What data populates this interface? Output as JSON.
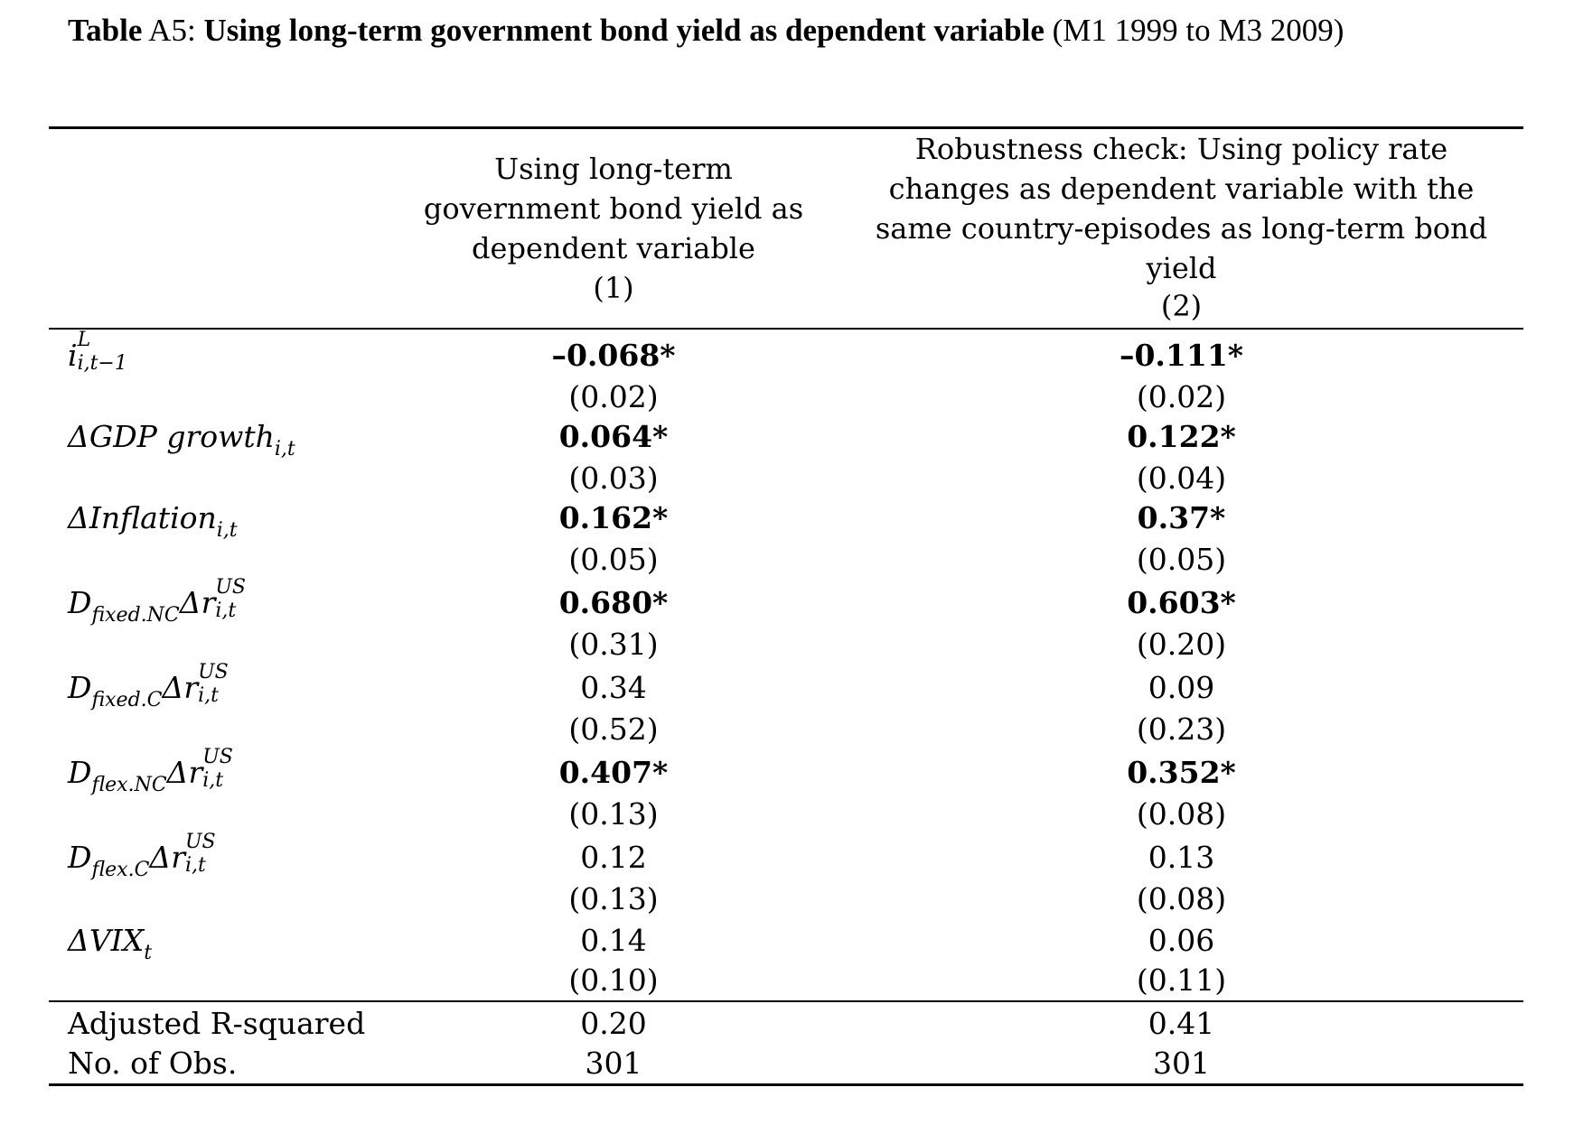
{
  "caption": {
    "label": "Table",
    "number": " A5: ",
    "title": "Using long-term government bond yield as dependent variable",
    "period": " (M1 1999 to M3 2009)"
  },
  "columns": [
    {
      "heading": "Using long-term government bond yield as dependent variable",
      "number": "(1)"
    },
    {
      "heading": "Robustness check: Using policy rate changes as dependent variable with the same country-episodes as long-term bond yield",
      "number": "(2)"
    }
  ],
  "rows": [
    {
      "label": {
        "base": "i",
        "sup": "L",
        "sub": "i,t−1"
      },
      "col1": {
        "coef": "–0.068*",
        "se": "(0.02)",
        "significant": true
      },
      "col2": {
        "coef": "–0.111*",
        "se": "(0.02)",
        "significant": true
      }
    },
    {
      "label": {
        "base": "ΔGDP growth",
        "sub": "i,t"
      },
      "col1": {
        "coef": "0.064*",
        "se": "(0.03)",
        "significant": true
      },
      "col2": {
        "coef": "0.122*",
        "se": "(0.04)",
        "significant": true
      }
    },
    {
      "label": {
        "base": "ΔInflation",
        "sub": "i,t"
      },
      "col1": {
        "coef": "0.162*",
        "se": "(0.05)",
        "significant": true
      },
      "col2": {
        "coef": "0.37*",
        "se": "(0.05)",
        "significant": true
      }
    },
    {
      "label": {
        "base": "D",
        "sub": "fixed.NC",
        "mid": "Δr",
        "sup2": "US",
        "sub2": "i,t"
      },
      "col1": {
        "coef": "0.680*",
        "se": "(0.31)",
        "significant": true
      },
      "col2": {
        "coef": "0.603*",
        "se": "(0.20)",
        "significant": true
      }
    },
    {
      "label": {
        "base": "D",
        "sub": "fixed.C",
        "mid": "Δr",
        "sup2": "US",
        "sub2": "i,t"
      },
      "col1": {
        "coef": "0.34",
        "se": "(0.52)",
        "significant": false
      },
      "col2": {
        "coef": "0.09",
        "se": "(0.23)",
        "significant": false
      }
    },
    {
      "label": {
        "base": "D",
        "sub": "flex.NC",
        "mid": "Δr",
        "sup2": "US",
        "sub2": "i,t"
      },
      "col1": {
        "coef": "0.407*",
        "se": "(0.13)",
        "significant": true
      },
      "col2": {
        "coef": "0.352*",
        "se": "(0.08)",
        "significant": true
      }
    },
    {
      "label": {
        "base": "D",
        "sub": "flex.C",
        "mid": "Δr",
        "sup2": "US",
        "sub2": "i,t"
      },
      "col1": {
        "coef": "0.12",
        "se": "(0.13)",
        "significant": false
      },
      "col2": {
        "coef": "0.13",
        "se": "(0.08)",
        "significant": false
      }
    },
    {
      "label": {
        "base": "ΔVIX",
        "sub": "t"
      },
      "col1": {
        "coef": "0.14",
        "se": "(0.10)",
        "significant": false
      },
      "col2": {
        "coef": "0.06",
        "se": "(0.11)",
        "significant": false
      }
    }
  ],
  "footer": [
    {
      "label": "Adjusted R-squared",
      "col1": "0.20",
      "col2": "0.41"
    },
    {
      "label": "No. of Obs.",
      "col1": "301",
      "col2": "301"
    }
  ]
}
